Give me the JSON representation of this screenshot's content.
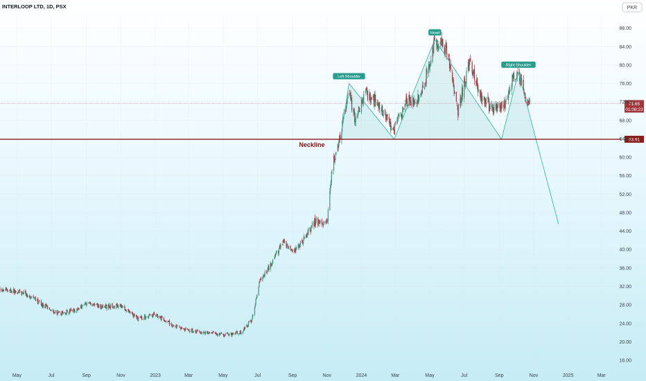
{
  "chart_data": {
    "type": "candlestick",
    "title": "INTERLOOP LTD, 1D, PSX",
    "currency": "PKR",
    "y_ticks": [
      16,
      20,
      24,
      28,
      32,
      36,
      40,
      44,
      48,
      52,
      56,
      60,
      64,
      68,
      72,
      76,
      80,
      84,
      88
    ],
    "y_tick_labels": [
      "16.00",
      "20.00",
      "24.00",
      "28.00",
      "32.00",
      "36.00",
      "40.00",
      "44.00",
      "48.00",
      "52.00",
      "56.00",
      "60.00",
      "64.00",
      "68.00",
      "72.00",
      "76.00",
      "80.00",
      "84.00",
      "88.00"
    ],
    "x_ticks": [
      "May",
      "Jul",
      "Sep",
      "Nov",
      "2023",
      "Mar",
      "May",
      "Jul",
      "Sep",
      "Nov",
      "2024",
      "Mar",
      "May",
      "Jul",
      "Sep",
      "Nov",
      "2025",
      "Mar"
    ],
    "ylim": [
      14.5,
      90.5
    ],
    "time_range": [
      "2022-04",
      "2025-04"
    ],
    "price_path": [
      [
        "2022-04-01",
        31.5
      ],
      [
        "2022-05-15",
        30.5
      ],
      [
        "2022-06-15",
        28.0
      ],
      [
        "2022-07-15",
        26.0
      ],
      [
        "2022-08-15",
        27.0
      ],
      [
        "2022-09-01",
        28.5
      ],
      [
        "2022-10-01",
        27.5
      ],
      [
        "2022-11-01",
        28.0
      ],
      [
        "2022-12-01",
        25.0
      ],
      [
        "2023-01-01",
        26.0
      ],
      [
        "2023-02-01",
        23.5
      ],
      [
        "2023-03-01",
        22.5
      ],
      [
        "2023-04-01",
        22.0
      ],
      [
        "2023-05-01",
        21.5
      ],
      [
        "2023-06-01",
        22.0
      ],
      [
        "2023-06-20",
        24.5
      ],
      [
        "2023-07-05",
        33.0
      ],
      [
        "2023-07-20",
        36.0
      ],
      [
        "2023-08-15",
        41.5
      ],
      [
        "2023-09-01",
        39.0
      ],
      [
        "2023-09-20",
        42.0
      ],
      [
        "2023-10-10",
        46.0
      ],
      [
        "2023-11-01",
        45.5
      ],
      [
        "2023-11-10",
        58.0
      ],
      [
        "2023-11-25",
        65.0
      ],
      [
        "2023-12-10",
        75.0
      ],
      [
        "2023-12-20",
        68.0
      ],
      [
        "2024-01-10",
        74.0
      ],
      [
        "2024-02-01",
        71.0
      ],
      [
        "2024-02-28",
        66.0
      ],
      [
        "2024-03-20",
        72.0
      ],
      [
        "2024-04-15",
        73.0
      ],
      [
        "2024-05-10",
        85.5
      ],
      [
        "2024-06-01",
        83.0
      ],
      [
        "2024-06-20",
        70.0
      ],
      [
        "2024-07-10",
        81.0
      ],
      [
        "2024-08-01",
        73.0
      ],
      [
        "2024-08-20",
        70.5
      ],
      [
        "2024-09-10",
        71.0
      ],
      [
        "2024-09-20",
        76.0
      ],
      [
        "2024-10-05",
        78.5
      ],
      [
        "2024-10-20",
        72.0
      ],
      [
        "2024-10-25",
        71.65
      ]
    ],
    "head_and_shoulders": {
      "points": [
        [
          "2023-11-25",
          63.91
        ],
        [
          "2023-12-10",
          76.0
        ],
        [
          "2024-02-28",
          63.91
        ],
        [
          "2024-05-10",
          85.5
        ],
        [
          "2024-09-05",
          63.91
        ],
        [
          "2024-10-05",
          78.5
        ],
        [
          "2024-11-05",
          63.91
        ],
        [
          "2024-12-15",
          45.5
        ]
      ],
      "labels": [
        "Left Shoulder",
        "Head",
        "Right Shoulder"
      ]
    },
    "neckline": {
      "value": 63.91,
      "label": "Neckline",
      "price_label": "63.91"
    },
    "current_price": {
      "value": 71.65,
      "label": "71.65",
      "countdown": "01:08:23"
    }
  }
}
